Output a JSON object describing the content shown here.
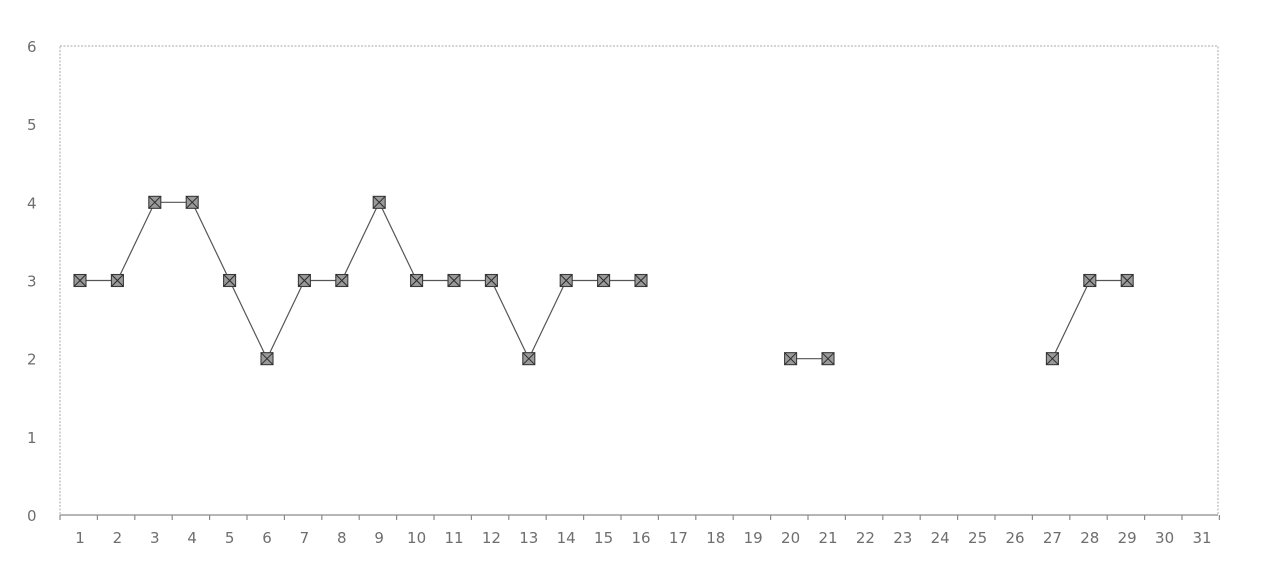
{
  "chart_data": {
    "type": "line",
    "title": "",
    "xlabel": "",
    "ylabel": "",
    "ylim": [
      0,
      6
    ],
    "y_ticks": [
      "0",
      "1",
      "2",
      "3",
      "4",
      "5",
      "6"
    ],
    "categories": [
      "1",
      "2",
      "3",
      "4",
      "5",
      "6",
      "7",
      "8",
      "9",
      "10",
      "11",
      "12",
      "13",
      "14",
      "15",
      "16",
      "17",
      "18",
      "19",
      "20",
      "21",
      "22",
      "23",
      "24",
      "25",
      "26",
      "27",
      "28",
      "29",
      "30",
      "31"
    ],
    "series": [
      {
        "values": [
          3,
          3,
          4,
          4,
          3,
          2,
          3,
          3,
          4,
          3,
          3,
          3,
          2,
          3,
          3,
          3,
          null,
          null,
          null,
          2,
          2,
          null,
          null,
          null,
          null,
          null,
          2,
          3,
          3,
          null,
          null
        ]
      }
    ],
    "grid": true,
    "legend": "none",
    "colors": {
      "gridlines": [
        "#d8b65a",
        "#8fd0e6",
        "#c08fa8",
        "#b9c58a"
      ],
      "line": "#555555",
      "marker_fill": "#9a9a9a",
      "marker_edge": "#3a3a3a",
      "text": "#6e6e6e"
    }
  }
}
